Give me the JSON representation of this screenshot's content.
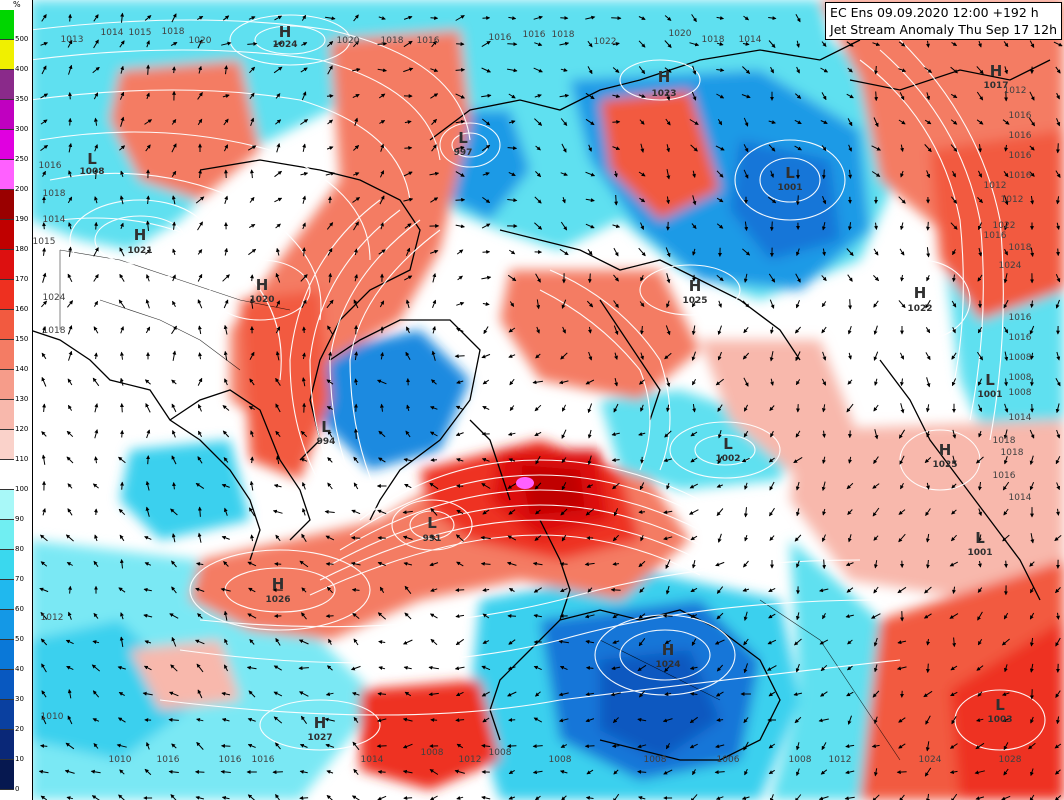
{
  "header": {
    "line1": "EC Ens 09.09.2020 12:00 +192 h",
    "line2": "Jet Stream Anomaly Thu Sep 17 12h"
  },
  "legend": {
    "unit": "%",
    "levels": [
      {
        "label": "500",
        "color": "#00d600"
      },
      {
        "label": "400",
        "color": "#f0f000"
      },
      {
        "label": "350",
        "color": "#8a2a8a"
      },
      {
        "label": "300",
        "color": "#c000c0"
      },
      {
        "label": "250",
        "color": "#e000e0"
      },
      {
        "label": "200",
        "color": "#ff60ff"
      },
      {
        "label": "190",
        "color": "#9a0000"
      },
      {
        "label": "180",
        "color": "#c00000"
      },
      {
        "label": "170",
        "color": "#dd1010"
      },
      {
        "label": "160",
        "color": "#ee3020"
      },
      {
        "label": "150",
        "color": "#f25a40"
      },
      {
        "label": "140",
        "color": "#f47c64"
      },
      {
        "label": "130",
        "color": "#f69c8a"
      },
      {
        "label": "120",
        "color": "#f8b8ac"
      },
      {
        "label": "110",
        "color": "#fad2ca"
      },
      {
        "label": "100",
        "color": "#ffffff"
      },
      {
        "label": "90",
        "color": "#a8f8f8"
      },
      {
        "label": "80",
        "color": "#70eef2"
      },
      {
        "label": "70",
        "color": "#3ad8ee"
      },
      {
        "label": "60",
        "color": "#20b8ee"
      },
      {
        "label": "50",
        "color": "#1498e6"
      },
      {
        "label": "40",
        "color": "#0a78d8"
      },
      {
        "label": "30",
        "color": "#0858c0"
      },
      {
        "label": "20",
        "color": "#0a40a0"
      },
      {
        "label": "10",
        "color": "#0a2878"
      },
      {
        "label": "0",
        "color": "#061850"
      }
    ]
  },
  "pressure_systems": [
    {
      "type": "H",
      "value": "1024"
    },
    {
      "type": "L",
      "value": "1008"
    },
    {
      "type": "H",
      "value": "1021"
    },
    {
      "type": "H",
      "value": "1020"
    },
    {
      "type": "L",
      "value": "997"
    },
    {
      "type": "H",
      "value": "1023"
    },
    {
      "type": "L",
      "value": "1001"
    },
    {
      "type": "H",
      "value": "1017"
    },
    {
      "type": "H",
      "value": "1025"
    },
    {
      "type": "H",
      "value": "1022"
    },
    {
      "type": "L",
      "value": "994"
    },
    {
      "type": "L",
      "value": "1002"
    },
    {
      "type": "H",
      "value": "1025"
    },
    {
      "type": "L",
      "value": "1001"
    },
    {
      "type": "L",
      "value": "991"
    },
    {
      "type": "L",
      "value": "1001"
    },
    {
      "type": "H",
      "value": "1026"
    },
    {
      "type": "H",
      "value": "1024"
    },
    {
      "type": "H",
      "value": "1027"
    },
    {
      "type": "L",
      "value": "1003"
    }
  ],
  "isobar_labels": [
    "1013",
    "1014",
    "1015",
    "1018",
    "1020",
    "1020",
    "1018",
    "1016",
    "1016",
    "1016",
    "1018",
    "1022",
    "1020",
    "1018",
    "1014",
    "1012",
    "1016",
    "1018",
    "1014",
    "1015",
    "1016",
    "1016",
    "1016",
    "1016",
    "1012",
    "1012",
    "1016",
    "1018",
    "1022",
    "1024",
    "1024",
    "1018",
    "1016",
    "1016",
    "1008",
    "1008",
    "1008",
    "1014",
    "1018",
    "1018",
    "1016",
    "1014",
    "1012",
    "1010",
    "1010",
    "1016",
    "1016",
    "1016",
    "1014",
    "1008",
    "1012",
    "1008",
    "1008",
    "1008",
    "1006",
    "1008",
    "1012",
    "1024",
    "1028"
  ],
  "colors": {
    "coast": "#000000",
    "isobar": "#ffffff",
    "arrow": "#000000"
  }
}
